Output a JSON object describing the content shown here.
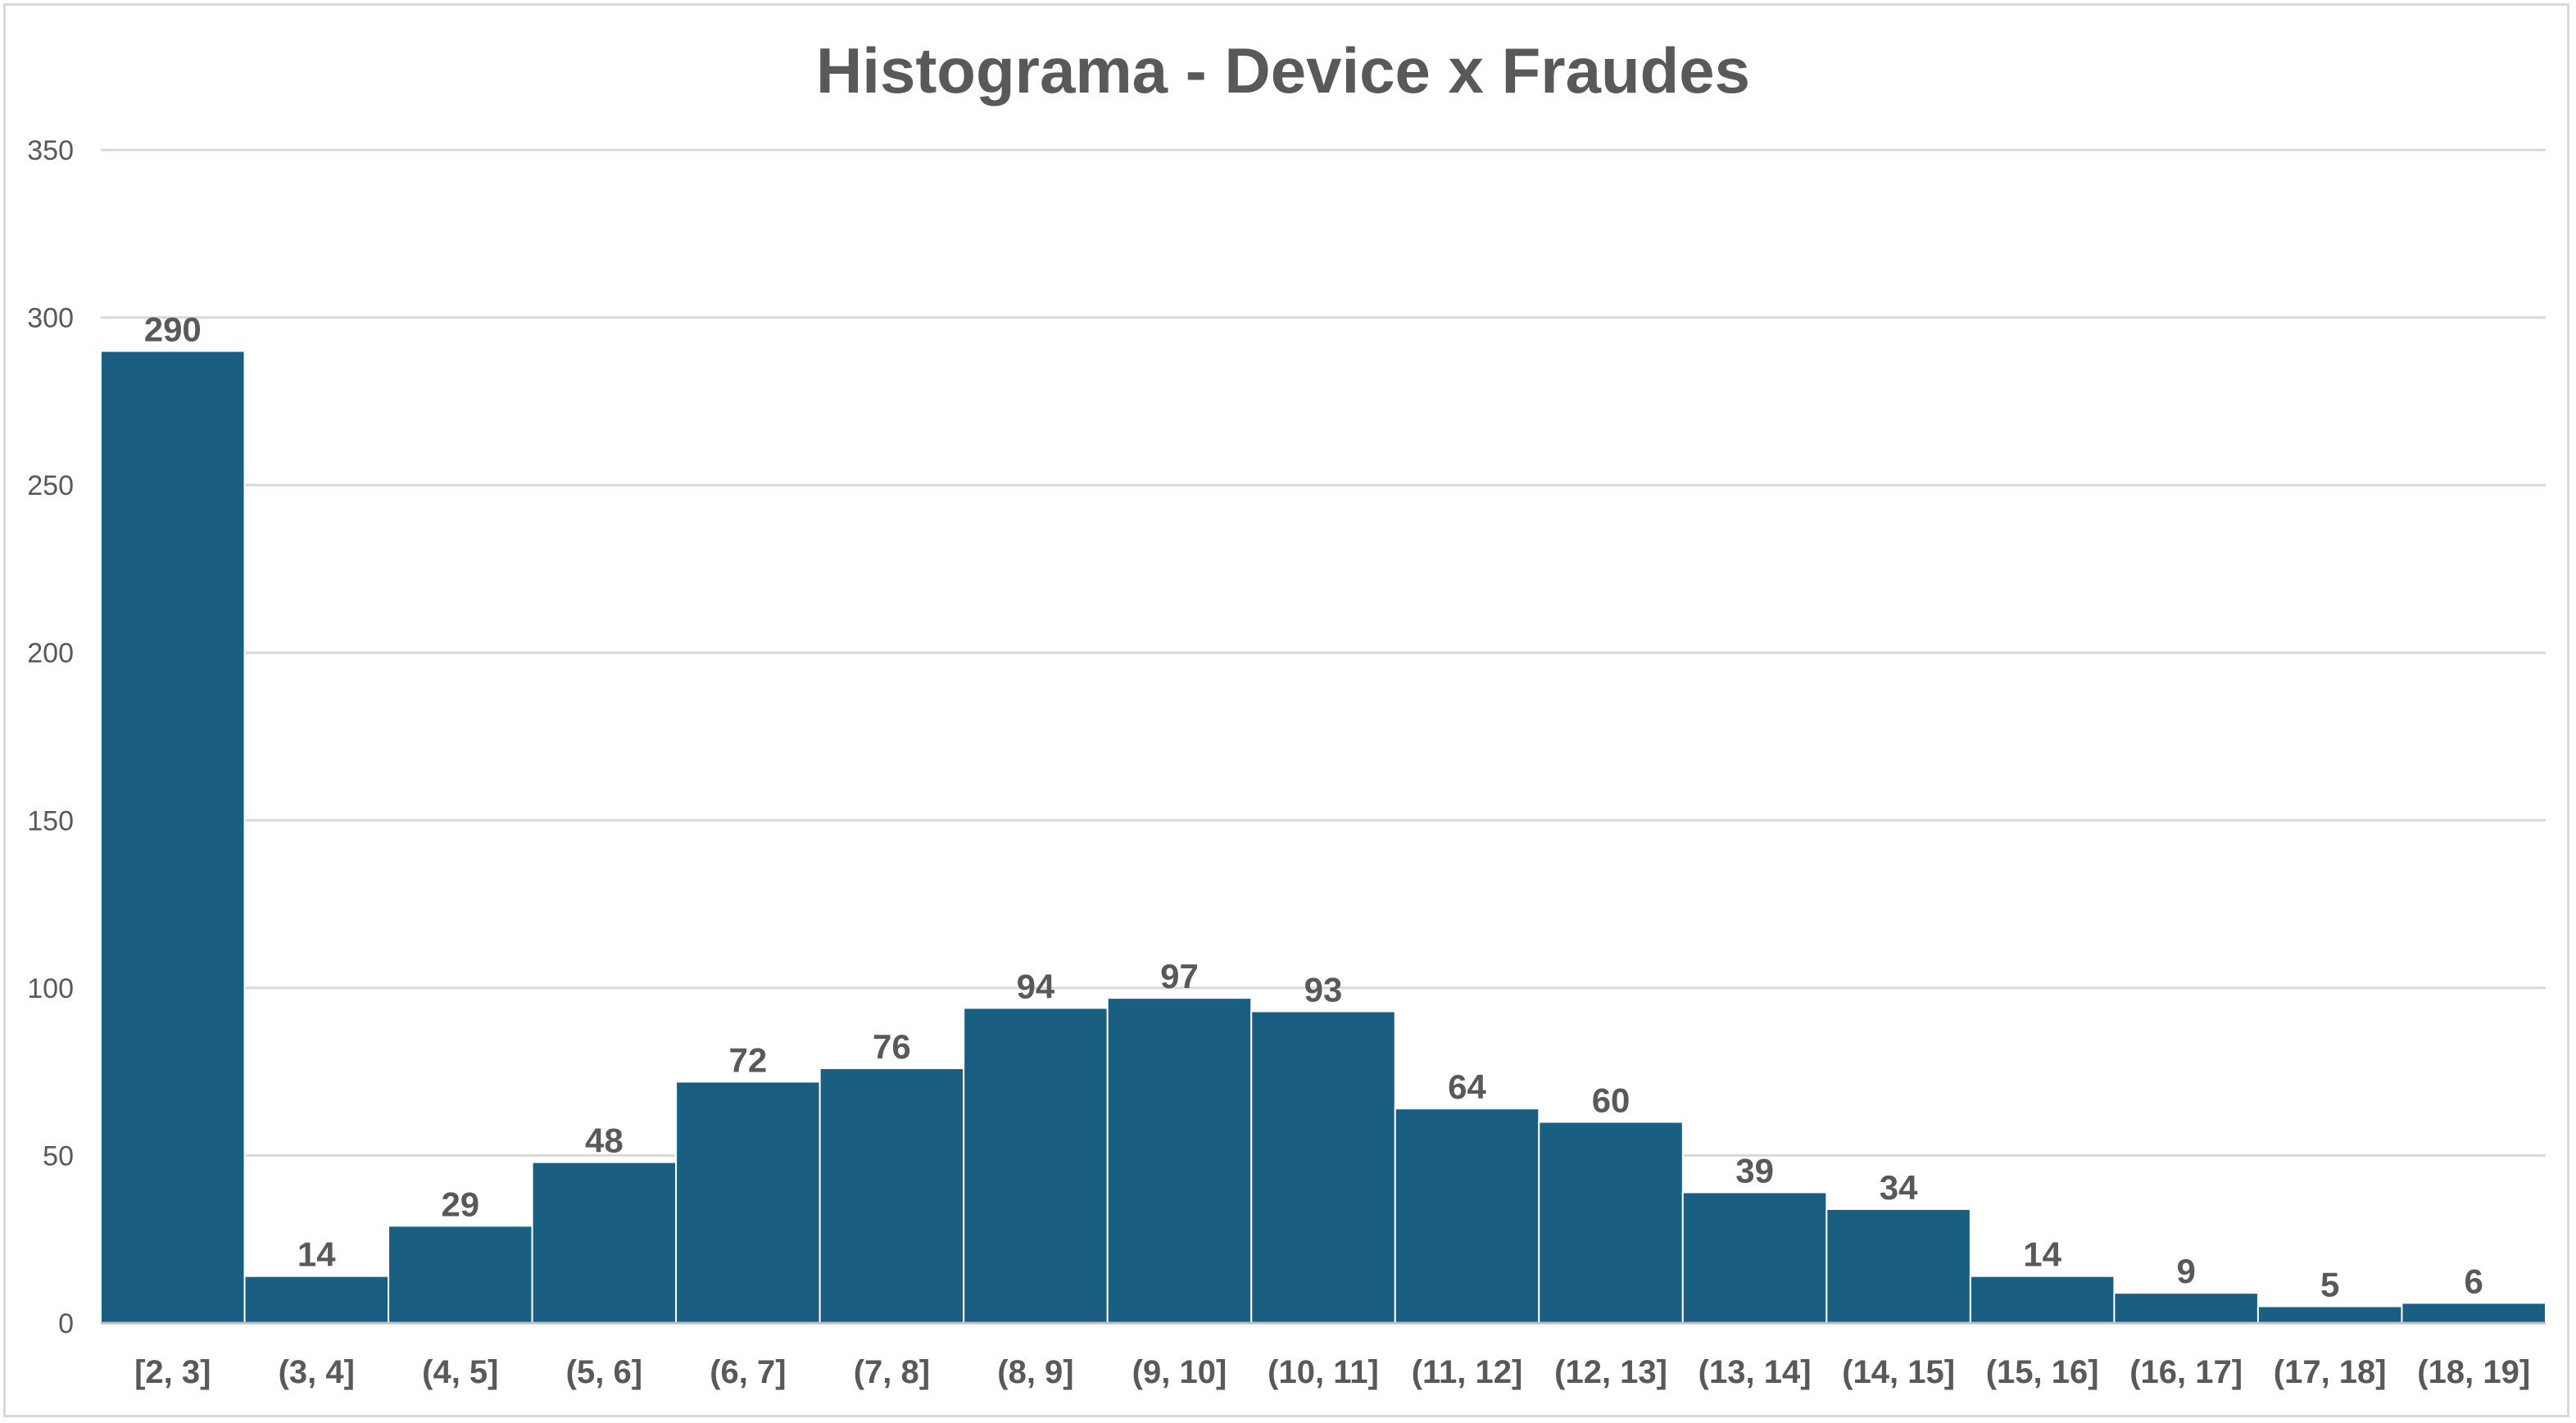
{
  "chart_data": {
    "type": "bar",
    "title": "Histograma - Device x Fraudes",
    "categories": [
      "[2, 3]",
      "(3, 4]",
      "(4, 5]",
      "(5, 6]",
      "(6, 7]",
      "(7, 8]",
      "(8, 9]",
      "(9, 10]",
      "(10, 11]",
      "(11, 12]",
      "(12, 13]",
      "(13, 14]",
      "(14, 15]",
      "(15, 16]",
      "(16, 17]",
      "(17, 18]",
      "(18, 19]"
    ],
    "values": [
      290,
      14,
      29,
      48,
      72,
      76,
      94,
      97,
      93,
      64,
      60,
      39,
      34,
      14,
      9,
      5,
      6
    ],
    "xlabel": "",
    "ylabel": "",
    "ylim": [
      0,
      350
    ],
    "yticks": [
      "0",
      "50",
      "100",
      "150",
      "200",
      "250",
      "300",
      "350"
    ],
    "grid": true,
    "legend": "none",
    "bar_color": "#1a5f82",
    "data_labels": true
  }
}
